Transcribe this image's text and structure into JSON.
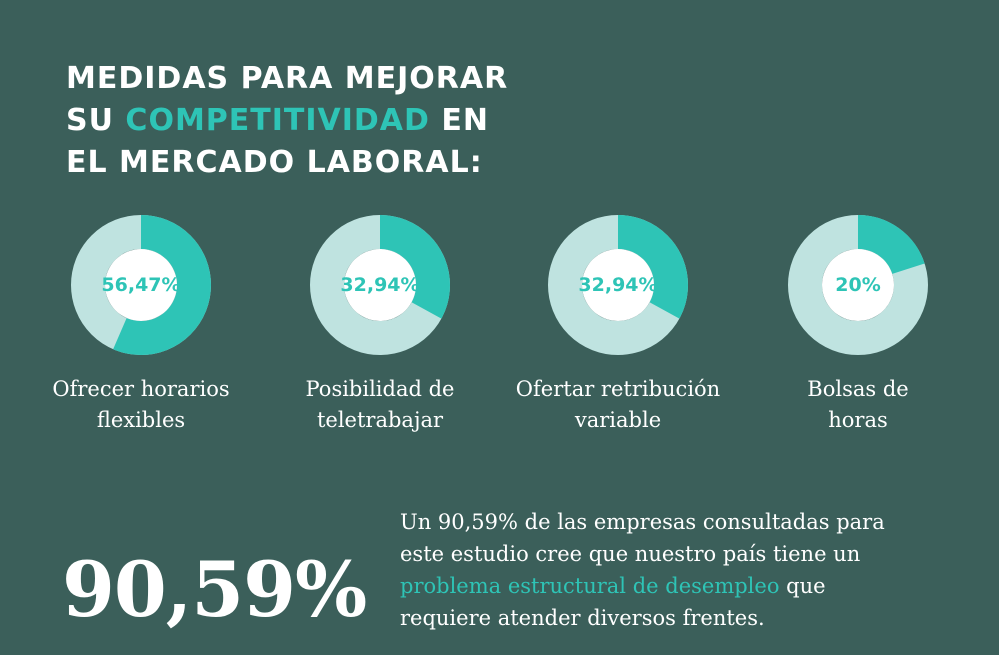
{
  "headline": {
    "line1": "MEDIDAS PARA MEJORAR",
    "line2_pre": "SU ",
    "line2_accent": "COMPETITIVIDAD",
    "line2_post": " EN",
    "line3": "EL MERCADO LABORAL:"
  },
  "colors": {
    "background": "#3b5f5a",
    "accent": "#2ec4b6",
    "ring_track": "#bfe3e0",
    "text": "#ffffff"
  },
  "chart_data": {
    "type": "pie",
    "items": [
      {
        "label_line1": "Ofrecer horarios",
        "label_line2": "flexibles",
        "value": 56.47,
        "value_label": "56,47%"
      },
      {
        "label_line1": "Posibilidad de",
        "label_line2": "teletrabajar",
        "value": 32.94,
        "value_label": "32,94%"
      },
      {
        "label_line1": "Ofertar retribución",
        "label_line2": "variable",
        "value": 32.94,
        "value_label": "32,94%"
      },
      {
        "label_line1": "Bolsas de",
        "label_line2": "horas",
        "value": 20,
        "value_label": "20%"
      }
    ]
  },
  "stat": {
    "big_value": "90,59%",
    "text_line1": "Un 90,59% de las empresas consultadas para",
    "text_line2": "este estudio cree que nuestro país tiene un",
    "text_highlight": "problema estructural de desempleo",
    "text_line3_post": " que",
    "text_line4": "requiere atender diversos frentes."
  }
}
